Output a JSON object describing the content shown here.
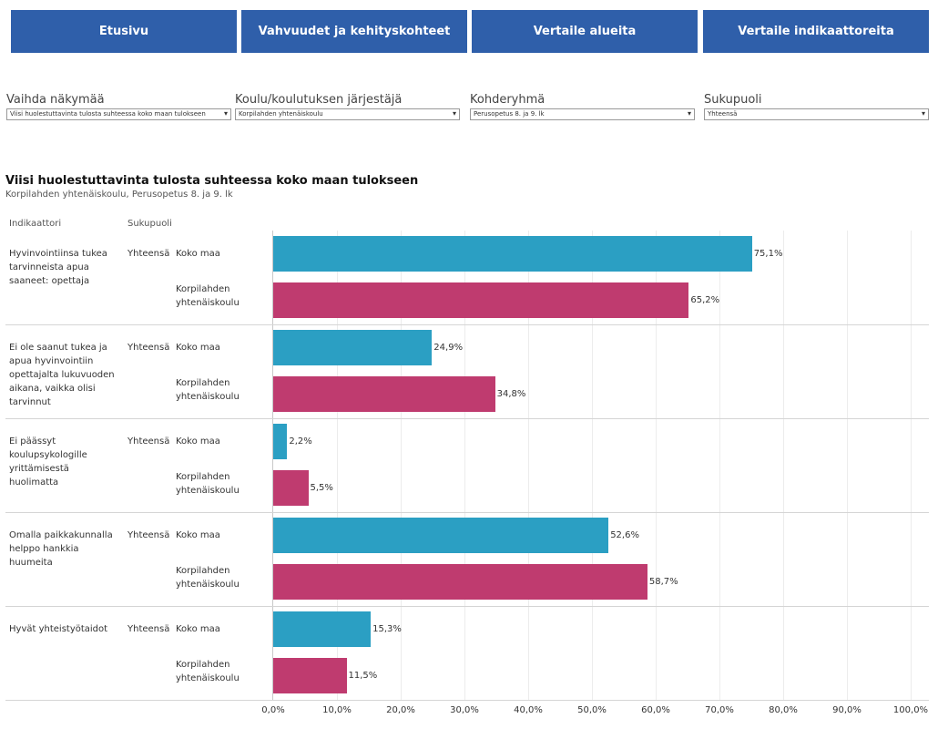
{
  "nav": [
    "Etusivu",
    "Vahvuudet ja kehityskohteet",
    "Vertaile alueita",
    "Vertaile indikaattoreita"
  ],
  "filters": [
    {
      "label": "Vaihda näkymää",
      "value": "Viisi huolestuttavinta tulosta suhteessa koko maan tulokseen"
    },
    {
      "label": "Koulu/koulutuksen järjestäjä",
      "value": "Korpilahden yhtenäiskoulu"
    },
    {
      "label": "Kohderyhmä",
      "value": "Perusopetus 8. ja 9. lk"
    },
    {
      "label": "Sukupuoli",
      "value": "Yhteensä"
    }
  ],
  "chart_data": {
    "type": "bar",
    "orientation": "horizontal",
    "title": "Viisi huolestuttavinta tulosta suhteessa koko maan tulokseen",
    "subtitle": "Korpilahden yhtenäiskoulu, Perusopetus 8. ja 9. lk",
    "column_headers": [
      "Indikaattori",
      "Sukupuoli"
    ],
    "gender": "Yhteensä",
    "categories": [
      "Hyvinvointiinsa tukea tarvinneista apua saaneet: opettaja",
      "Ei ole saanut tukea ja apua hyvinvointiin opettajalta lukuvuoden aikana, vaikka olisi tarvinnut",
      "Ei päässyt koulupsykologille yrittämisestä huolimatta",
      "Omalla paikkakunnalla helppo hankkia huumeita",
      "Hyvät yhteistyötaidot"
    ],
    "series": [
      {
        "name": "Koko maa",
        "color": "#2b9fc3",
        "values": [
          75.1,
          24.9,
          2.2,
          52.6,
          15.3
        ],
        "value_labels": [
          "75,1%",
          "24,9%",
          "2,2%",
          "52,6%",
          "15,3%"
        ]
      },
      {
        "name": "Korpilahden yhtenäiskoulu",
        "color": "#bf3b6f",
        "values": [
          65.2,
          34.8,
          5.5,
          58.7,
          11.5
        ],
        "value_labels": [
          "65,2%",
          "34,8%",
          "5,5%",
          "58,7%",
          "11,5%"
        ]
      }
    ],
    "xlim": [
      0,
      100
    ],
    "xticks": [
      {
        "value": 0,
        "label": "0,0%"
      },
      {
        "value": 10,
        "label": "10,0%"
      },
      {
        "value": 20,
        "label": "20,0%"
      },
      {
        "value": 30,
        "label": "30,0%"
      },
      {
        "value": 40,
        "label": "40,0%"
      },
      {
        "value": 50,
        "label": "50,0%"
      },
      {
        "value": 60,
        "label": "60,0%"
      },
      {
        "value": 70,
        "label": "70,0%"
      },
      {
        "value": 80,
        "label": "80,0%"
      },
      {
        "value": 90,
        "label": "90,0%"
      },
      {
        "value": 100,
        "label": "100,0%"
      }
    ],
    "grid": true
  }
}
